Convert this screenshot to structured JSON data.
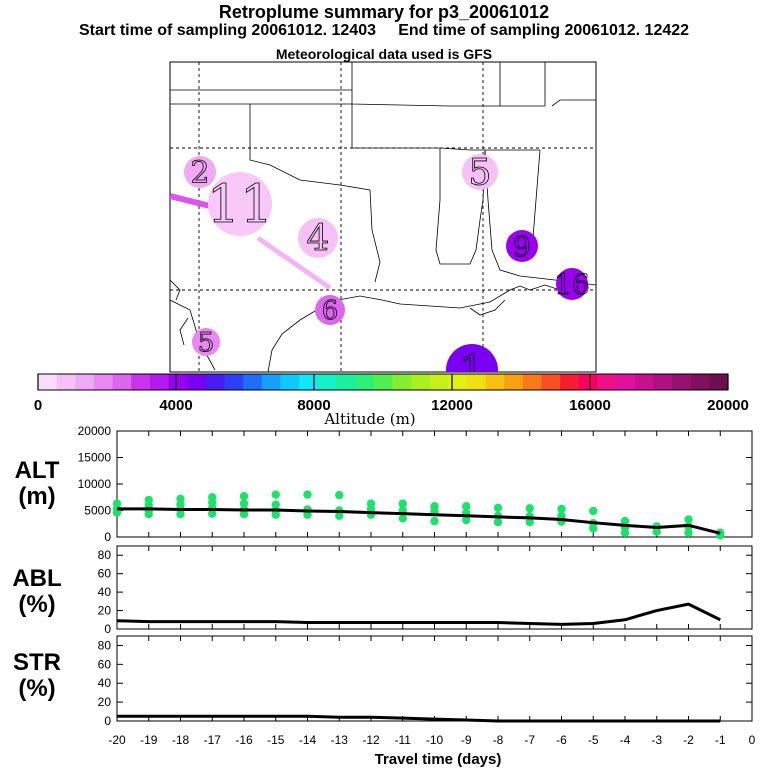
{
  "header": {
    "title": "Retroplume summary for p3_20061012",
    "subtitle_start": "Start time of sampling 20061012. 12403",
    "subtitle_end": "End time of sampling 20061012. 12422",
    "met_line": "Meteorological data used is GFS"
  },
  "colorbar": {
    "label": "Altitude (m)",
    "min": 0,
    "max": 20000,
    "ticks": [
      "0",
      "4000",
      "8000",
      "12000",
      "16000",
      "20000"
    ],
    "colors": [
      "#fbdcfb",
      "#f6c2f6",
      "#eeaaf4",
      "#e888f0",
      "#dd66ee",
      "#cc33ee",
      "#b31aef",
      "#9900f0",
      "#7a00f2",
      "#4b1bf5",
      "#2a3ff7",
      "#1f6dfa",
      "#15a0fb",
      "#10c8fc",
      "#10e8f8",
      "#14f0c8",
      "#1cf0a0",
      "#2cf078",
      "#50f050",
      "#80f030",
      "#a8f020",
      "#c8f018",
      "#e0f010",
      "#f0e010",
      "#f8c010",
      "#f8a010",
      "#f87a18",
      "#f85020",
      "#f81c30",
      "#f80060",
      "#f01088",
      "#e010a0",
      "#c81090",
      "#b01080",
      "#981070",
      "#801060",
      "#6a1050"
    ]
  },
  "map": {
    "plumes": [
      {
        "label": "2",
        "color": "#f0aaf4"
      },
      {
        "label": "11",
        "color": "#f8c8f8"
      },
      {
        "label": "4",
        "color": "#f6c2f6"
      },
      {
        "label": "6",
        "color": "#dd66ee"
      },
      {
        "label": "5",
        "color": "#e888f0"
      },
      {
        "label": "5",
        "color": "#f6c2f6"
      },
      {
        "label": "9",
        "color": "#9900f0"
      },
      {
        "label": "16",
        "color": "#9900f0"
      },
      {
        "label": "1",
        "color": "#7a00f2"
      }
    ]
  },
  "panels": {
    "alt_label_1": "ALT",
    "alt_label_2": "(m)",
    "abl_label_1": "ABL",
    "abl_label_2": "(%)",
    "str_label_1": "STR",
    "str_label_2": "(%)",
    "alt_yticks": [
      "20000",
      "15000",
      "10000",
      "5000",
      "0"
    ],
    "pct_yticks": [
      "80",
      "60",
      "40",
      "20",
      "0"
    ],
    "xticks": [
      "-20",
      "-19",
      "-18",
      "-17",
      "-16",
      "-15",
      "-14",
      "-13",
      "-12",
      "-11",
      "-10",
      "-9",
      "-8",
      "-7",
      "-6",
      "-5",
      "-4",
      "-3",
      "-2",
      "-1",
      "0"
    ],
    "xlabel": "Travel time (days)"
  },
  "chart_data": {
    "type": "line",
    "x": [
      -20,
      -19,
      -18,
      -17,
      -16,
      -15,
      -14,
      -13,
      -12,
      -11,
      -10,
      -9,
      -8,
      -7,
      -6,
      -5,
      -4,
      -3,
      -2,
      -1
    ],
    "xlabel": "Travel time (days)",
    "series": [
      {
        "name": "ALT (m)",
        "ylim": [
          0,
          20000
        ],
        "values": [
          5300,
          5300,
          5200,
          5200,
          5100,
          5100,
          4900,
          4800,
          4600,
          4400,
          4200,
          4000,
          3800,
          3600,
          3300,
          2700,
          2200,
          1800,
          2200,
          700
        ]
      },
      {
        "name": "ABL (%)",
        "ylim": [
          0,
          90
        ],
        "values": [
          9,
          8,
          8,
          8,
          8,
          8,
          7,
          7,
          7,
          7,
          7,
          7,
          7,
          6,
          5,
          6,
          10,
          20,
          27,
          10
        ]
      },
      {
        "name": "STR (%)",
        "ylim": [
          0,
          90
        ],
        "values": [
          5,
          5,
          5,
          5,
          5,
          5,
          5,
          4,
          4,
          3,
          2,
          1,
          0,
          0,
          0,
          0,
          0,
          0,
          0,
          0
        ]
      }
    ],
    "alt_scatter": [
      {
        "x": -20,
        "values": [
          6300,
          5300,
          4600
        ]
      },
      {
        "x": -19,
        "values": [
          7000,
          6000,
          5000,
          4300
        ]
      },
      {
        "x": -18,
        "values": [
          7200,
          6100,
          5200,
          4300
        ]
      },
      {
        "x": -17,
        "values": [
          7500,
          6500,
          5500,
          4400
        ]
      },
      {
        "x": -16,
        "values": [
          7700,
          6300,
          5200,
          4300
        ]
      },
      {
        "x": -15,
        "values": [
          8000,
          6100,
          5000,
          4200
        ]
      },
      {
        "x": -14,
        "values": [
          8000,
          5200,
          4200
        ]
      },
      {
        "x": -13,
        "values": [
          7900,
          5000,
          4000
        ]
      },
      {
        "x": -12,
        "values": [
          6300,
          5300,
          4200
        ]
      },
      {
        "x": -11,
        "values": [
          6300,
          5000,
          3500
        ]
      },
      {
        "x": -10,
        "values": [
          5800,
          4800,
          3000
        ]
      },
      {
        "x": -9,
        "values": [
          5800,
          4500,
          3200
        ]
      },
      {
        "x": -8,
        "values": [
          5500,
          4000,
          2800
        ]
      },
      {
        "x": -7,
        "values": [
          5400,
          3900,
          2800
        ]
      },
      {
        "x": -6,
        "values": [
          5300,
          4000,
          2900
        ]
      },
      {
        "x": -5,
        "values": [
          4900,
          2600,
          1600
        ]
      },
      {
        "x": -4,
        "values": [
          3000,
          1800,
          800
        ]
      },
      {
        "x": -3,
        "values": [
          2000,
          1000
        ]
      },
      {
        "x": -2,
        "values": [
          3300,
          2000,
          800
        ]
      },
      {
        "x": -1,
        "values": [
          800,
          300
        ]
      }
    ]
  }
}
